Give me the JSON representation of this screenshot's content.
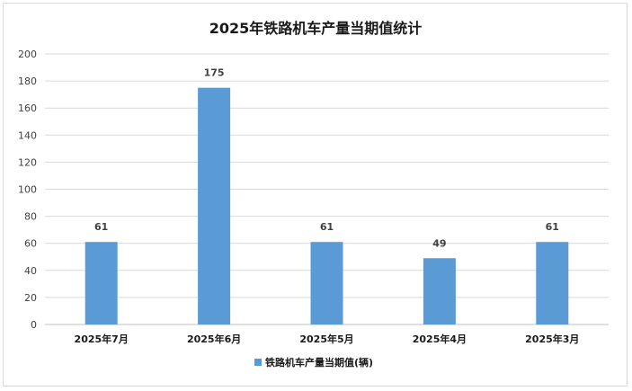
{
  "chart_data": {
    "type": "bar",
    "title": "2025年铁路机车产量当期值统计",
    "categories": [
      "2025年7月",
      "2025年6月",
      "2025年5月",
      "2025年4月",
      "2025年3月"
    ],
    "series": [
      {
        "name": "铁路机车产量当期值(辆)",
        "values": [
          61,
          175,
          61,
          49,
          61
        ],
        "color": "#5b9bd5"
      }
    ],
    "ylim": [
      0,
      200
    ],
    "yticks": [
      0,
      20,
      40,
      60,
      80,
      100,
      120,
      140,
      160,
      180,
      200
    ],
    "grid": true,
    "legend_position": "bottom",
    "data_labels": true
  }
}
